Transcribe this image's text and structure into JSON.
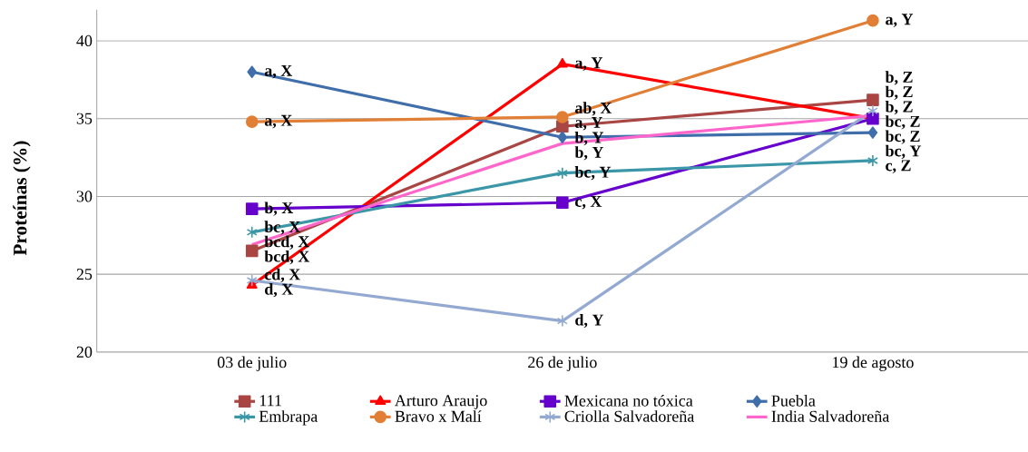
{
  "chart_data": {
    "type": "line",
    "ylabel": "Proteínas (%)",
    "categories": [
      "03 de julio",
      "26 de julio",
      "19 de agosto"
    ],
    "ylim": [
      20,
      42
    ],
    "yticks": [
      20,
      25,
      30,
      35,
      40
    ],
    "grid": "y",
    "legend": "bottom",
    "series": [
      {
        "name": "111",
        "color": "#a94643",
        "marker": "square",
        "values": [
          26.5,
          34.5,
          36.2
        ],
        "value_labels": [
          "bcd, X",
          "a, Y",
          "b, Z"
        ]
      },
      {
        "name": "Arturo Araujo",
        "color": "#ff0000",
        "marker": "triangle",
        "values": [
          24.3,
          38.5,
          35.0
        ],
        "value_labels": [
          "d, X",
          "a, Y",
          "bc, Z"
        ]
      },
      {
        "name": "Mexicana no tóxica",
        "color": "#6600cc",
        "marker": "square",
        "values": [
          29.2,
          29.6,
          35.0
        ],
        "value_labels": [
          "b, X",
          "c, X",
          "bc, Z"
        ]
      },
      {
        "name": "Puebla",
        "color": "#3f6eab",
        "marker": "diamond",
        "values": [
          38.0,
          33.8,
          34.1
        ],
        "value_labels": [
          "a, X",
          "b, Y",
          "bc, Y"
        ]
      },
      {
        "name": "Embrapa",
        "color": "#3b97a8",
        "marker": "cross",
        "values": [
          27.7,
          31.5,
          32.3
        ],
        "value_labels": [
          "bc, X",
          "bc, Y",
          "c, Z"
        ]
      },
      {
        "name": "Bravo x Malí",
        "color": "#e07f35",
        "marker": "circle",
        "values": [
          34.8,
          35.1,
          41.3
        ],
        "value_labels": [
          "a, X",
          "ab, X",
          "a, Y"
        ]
      },
      {
        "name": "Criolla Salvadoreña",
        "color": "#93a9d1",
        "marker": "cross",
        "values": [
          24.6,
          22.0,
          35.5
        ],
        "value_labels": [
          "cd, X",
          "d, Y",
          "b, Z"
        ]
      },
      {
        "name": "India Salvadoreña",
        "color": "#ff66cc",
        "marker": "none",
        "values": [
          26.9,
          33.4,
          35.2
        ],
        "value_labels": [
          "bcd, X",
          "b, Y",
          "b, Z"
        ]
      }
    ]
  }
}
